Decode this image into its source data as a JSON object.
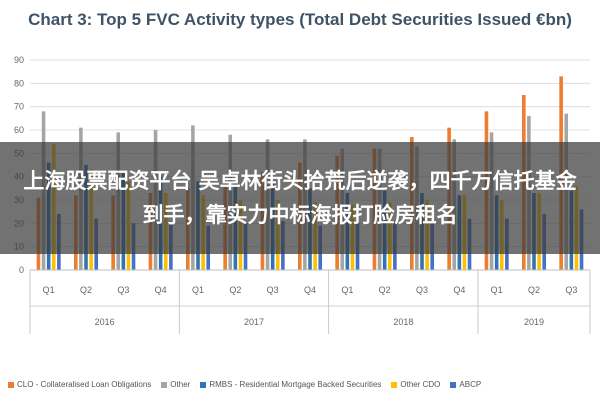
{
  "chart_data": {
    "type": "bar",
    "title": "Chart 3: Top 5 FVC Activity types (Total Debt Securities Issued €bn)",
    "xlabel": "",
    "ylabel": "",
    "ylim": [
      0,
      90
    ],
    "yticks": [
      0,
      10,
      20,
      30,
      40,
      50,
      60,
      70,
      80,
      90
    ],
    "grid": true,
    "legend_position": "bottom",
    "categories": [
      "Q1",
      "Q2",
      "Q3",
      "Q4",
      "Q1",
      "Q2",
      "Q3",
      "Q4",
      "Q1",
      "Q2",
      "Q3",
      "Q4",
      "Q1",
      "Q2",
      "Q3"
    ],
    "years": [
      {
        "label": "2016",
        "count": 4
      },
      {
        "label": "2017",
        "count": 4
      },
      {
        "label": "2018",
        "count": 4
      },
      {
        "label": "2019",
        "count": 3
      }
    ],
    "series": [
      {
        "name": "CLO - Collateralised Loan Obligations",
        "color": "#ed7d31",
        "values": [
          31,
          32,
          32,
          33,
          35,
          38,
          42,
          46,
          49,
          52,
          57,
          61,
          68,
          75,
          83
        ]
      },
      {
        "name": "Other",
        "color": "#a5a5a5",
        "values": [
          68,
          61,
          59,
          60,
          62,
          58,
          56,
          56,
          52,
          52,
          53,
          56,
          59,
          66,
          67
        ]
      },
      {
        "name": "RMBS - Residential Mortgage Backed Securities",
        "color": "#2e75b6",
        "values": [
          46,
          45,
          42,
          40,
          38,
          37,
          37,
          35,
          33,
          34,
          33,
          32,
          32,
          33,
          34
        ]
      },
      {
        "name": "Other CDO",
        "color": "#ffc000",
        "values": [
          54,
          43,
          38,
          33,
          32,
          30,
          30,
          29,
          28,
          29,
          30,
          32,
          30,
          33,
          36
        ]
      },
      {
        "name": "ABCP",
        "color": "#4472c4",
        "values": [
          24,
          22,
          20,
          20,
          19,
          20,
          21,
          19,
          20,
          21,
          21,
          22,
          22,
          24,
          26
        ]
      }
    ]
  },
  "overlay": {
    "text": "上海股票配资平台 吴卓林街头拾荒后逆袭，四千万信托基金到手，靠实力中标海报打脸房租名"
  }
}
